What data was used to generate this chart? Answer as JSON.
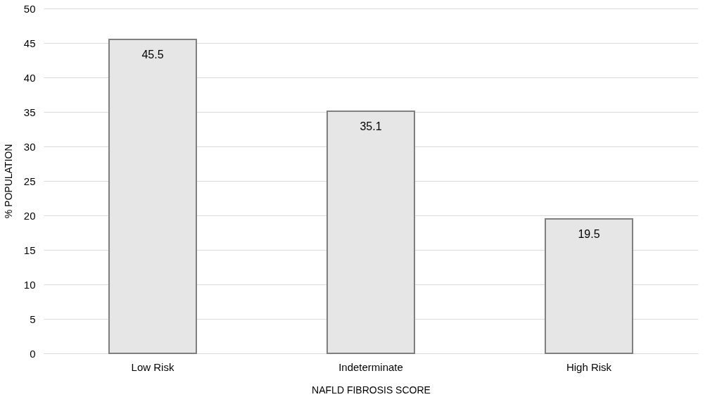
{
  "chart_data": {
    "type": "bar",
    "xlabel": "NAFLD FIBROSIS SCORE",
    "ylabel": "% POPULATION",
    "categories": [
      "Low Risk",
      "Indeterminate",
      "High Risk"
    ],
    "values": [
      45.5,
      35.1,
      19.5
    ],
    "color": "#e6e6e6",
    "ylim": [
      0,
      50
    ],
    "yticks": [
      0,
      5,
      10,
      15,
      20,
      25,
      30,
      35,
      40,
      45,
      50
    ],
    "grid": "y",
    "data_labels": true
  }
}
